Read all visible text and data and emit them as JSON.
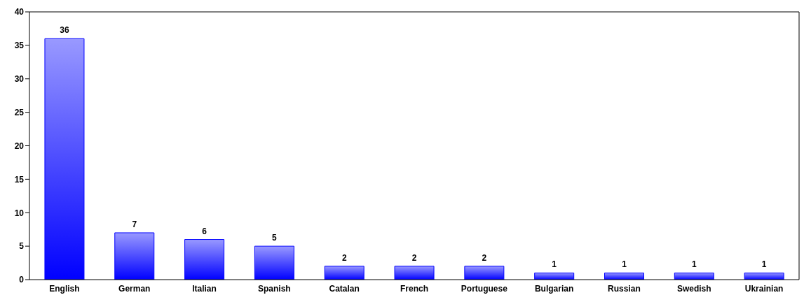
{
  "chart_data": {
    "type": "bar",
    "categories": [
      "English",
      "German",
      "Italian",
      "Spanish",
      "Catalan",
      "French",
      "Portuguese",
      "Bulgarian",
      "Russian",
      "Swedish",
      "Ukrainian"
    ],
    "values": [
      36,
      7,
      6,
      5,
      2,
      2,
      2,
      1,
      1,
      1,
      1
    ],
    "color": "#0000ff",
    "ylim": [
      0,
      40
    ],
    "yticks": [
      0,
      5,
      10,
      15,
      20,
      25,
      30,
      35,
      40
    ],
    "grid": false,
    "data_labels": true
  }
}
